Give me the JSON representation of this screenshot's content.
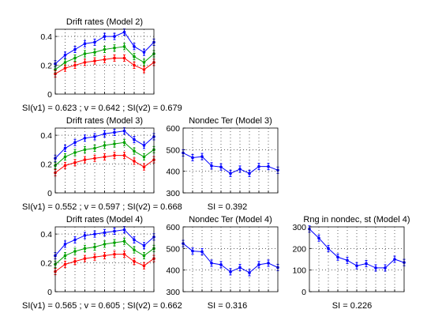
{
  "chart_data": [
    {
      "id": "m2-drift",
      "type": "line",
      "title": "Drift rates (Model 2)",
      "ylim": [
        0,
        0.45
      ],
      "yticks": [
        0,
        0.2,
        0.4
      ],
      "ytick_labels": [
        "0",
        "0.2",
        "0.4"
      ],
      "x": [
        1,
        2,
        3,
        4,
        5,
        6,
        7,
        8,
        9,
        10,
        11
      ],
      "grid": true,
      "caption": "SI(v1) = 0.623 ; v = 0.642 ; SI(v2) = 0.679",
      "series": [
        {
          "color": "#0000ff",
          "values": [
            0.21,
            0.27,
            0.31,
            0.35,
            0.36,
            0.4,
            0.4,
            0.43,
            0.33,
            0.29,
            0.36
          ]
        },
        {
          "color": "#00a000",
          "values": [
            0.17,
            0.22,
            0.25,
            0.28,
            0.29,
            0.31,
            0.32,
            0.33,
            0.26,
            0.22,
            0.28
          ]
        },
        {
          "color": "#ff0000",
          "values": [
            0.14,
            0.18,
            0.2,
            0.22,
            0.23,
            0.24,
            0.25,
            0.25,
            0.2,
            0.17,
            0.22
          ]
        }
      ]
    },
    {
      "id": "m3-drift",
      "type": "line",
      "title": "Drift rates (Model 3)",
      "ylim": [
        0,
        0.45
      ],
      "yticks": [
        0,
        0.2,
        0.4
      ],
      "ytick_labels": [
        "0",
        "0.2",
        "0.4"
      ],
      "x": [
        1,
        2,
        3,
        4,
        5,
        6,
        7,
        8,
        9,
        10,
        11
      ],
      "grid": true,
      "caption": "SI(v1) = 0.552 ; v = 0.597 ; SI(v2) = 0.668",
      "series": [
        {
          "color": "#0000ff",
          "values": [
            0.24,
            0.31,
            0.35,
            0.38,
            0.39,
            0.41,
            0.42,
            0.43,
            0.37,
            0.33,
            0.39
          ]
        },
        {
          "color": "#00a000",
          "values": [
            0.19,
            0.25,
            0.28,
            0.3,
            0.31,
            0.33,
            0.34,
            0.35,
            0.29,
            0.25,
            0.3
          ]
        },
        {
          "color": "#ff0000",
          "values": [
            0.14,
            0.19,
            0.21,
            0.23,
            0.24,
            0.25,
            0.26,
            0.26,
            0.22,
            0.18,
            0.23
          ]
        }
      ]
    },
    {
      "id": "m3-ter",
      "type": "line",
      "title": "Nondec Ter (Model 3)",
      "ylim": [
        300,
        600
      ],
      "yticks": [
        300,
        400,
        500,
        600
      ],
      "ytick_labels": [
        "300",
        "400",
        "500",
        "600"
      ],
      "x": [
        1,
        2,
        3,
        4,
        5,
        6,
        7,
        8,
        9,
        10,
        11
      ],
      "grid": true,
      "caption": "SI = 0.392",
      "series": [
        {
          "color": "#0000ff",
          "values": [
            485,
            463,
            468,
            425,
            420,
            390,
            410,
            390,
            422,
            422,
            405
          ]
        }
      ]
    },
    {
      "id": "m4-drift",
      "type": "line",
      "title": "Drift rates (Model 4)",
      "ylim": [
        0,
        0.45
      ],
      "yticks": [
        0,
        0.2,
        0.4
      ],
      "ytick_labels": [
        "0",
        "0.2",
        "0.4"
      ],
      "x": [
        1,
        2,
        3,
        4,
        5,
        6,
        7,
        8,
        9,
        10,
        11
      ],
      "grid": true,
      "caption": "SI(v1) = 0.565 ; v = 0.605 ; SI(v2) = 0.662",
      "series": [
        {
          "color": "#0000ff",
          "values": [
            0.25,
            0.33,
            0.36,
            0.39,
            0.4,
            0.41,
            0.42,
            0.43,
            0.36,
            0.32,
            0.38
          ]
        },
        {
          "color": "#00a000",
          "values": [
            0.19,
            0.25,
            0.28,
            0.3,
            0.31,
            0.33,
            0.34,
            0.35,
            0.29,
            0.25,
            0.3
          ]
        },
        {
          "color": "#ff0000",
          "values": [
            0.14,
            0.19,
            0.21,
            0.23,
            0.24,
            0.25,
            0.26,
            0.26,
            0.21,
            0.18,
            0.23
          ]
        }
      ]
    },
    {
      "id": "m4-ter",
      "type": "line",
      "title": "Nondec Ter (Model 4)",
      "ylim": [
        300,
        600
      ],
      "yticks": [
        300,
        400,
        500,
        600
      ],
      "ytick_labels": [
        "300",
        "400",
        "500",
        "600"
      ],
      "x": [
        1,
        2,
        3,
        4,
        5,
        6,
        7,
        8,
        9,
        10,
        11
      ],
      "grid": true,
      "caption": "SI = 0.316",
      "series": [
        {
          "color": "#0000ff",
          "values": [
            523,
            488,
            485,
            432,
            425,
            392,
            412,
            388,
            425,
            432,
            412
          ]
        }
      ]
    },
    {
      "id": "m4-st",
      "type": "line",
      "title": "Rng in nondec, st (Model 4)",
      "ylim": [
        0,
        300
      ],
      "yticks": [
        0,
        100,
        200,
        300
      ],
      "ytick_labels": [
        "0",
        "100",
        "200",
        "300"
      ],
      "x": [
        1,
        2,
        3,
        4,
        5,
        6,
        7,
        8,
        9,
        10,
        11
      ],
      "grid": true,
      "caption": "SI = 0.226",
      "series": [
        {
          "color": "#0000ff",
          "values": [
            290,
            248,
            200,
            160,
            145,
            120,
            130,
            110,
            110,
            150,
            135
          ]
        }
      ]
    }
  ]
}
